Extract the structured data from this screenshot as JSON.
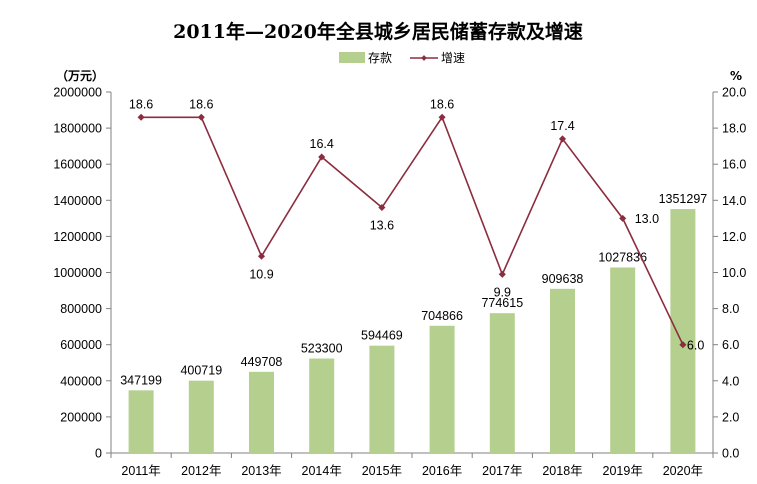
{
  "chart_data": {
    "type": "bar",
    "title": "2011年—2020年全县城乡居民储蓄存款及增速",
    "categories": [
      "2011年",
      "2012年",
      "2013年",
      "2014年",
      "2015年",
      "2016年",
      "2017年",
      "2018年",
      "2019年",
      "2020年"
    ],
    "series": [
      {
        "name": "存款",
        "type": "bar",
        "axis": "left",
        "values": [
          347199,
          400719,
          449708,
          523300,
          594469,
          704866,
          774615,
          909638,
          1027836,
          1351297
        ],
        "labels": [
          "347199",
          "400719",
          "449708",
          "523300",
          "594469",
          "704866",
          "774615",
          "909638",
          "1027836",
          "1351297"
        ]
      },
      {
        "name": "增速",
        "type": "line",
        "axis": "right",
        "values": [
          18.6,
          18.6,
          10.9,
          16.4,
          13.6,
          18.6,
          9.9,
          17.4,
          13.0,
          6.0
        ],
        "labels": [
          "18.6",
          "18.6",
          "10.9",
          "16.4",
          "13.6",
          "18.6",
          "9.9",
          "17.4",
          "13.0",
          "6.0"
        ]
      }
    ],
    "y_left": {
      "unit": "（万元）",
      "ylim": [
        0,
        2000000
      ],
      "ticks": [
        "0",
        "200000",
        "400000",
        "600000",
        "800000",
        "1000000",
        "1200000",
        "1400000",
        "1600000",
        "1800000",
        "2000000"
      ]
    },
    "y_right": {
      "unit": "%",
      "ylim": [
        0,
        20
      ],
      "ticks": [
        "0.0",
        "2.0",
        "4.0",
        "6.0",
        "8.0",
        "10.0",
        "12.0",
        "14.0",
        "16.0",
        "18.0",
        "20.0"
      ]
    },
    "legend_position": "top-center",
    "grid": false,
    "colors": {
      "bar": "#b5cf8e",
      "line": "#8b2d3f",
      "axis": "#808080"
    }
  }
}
